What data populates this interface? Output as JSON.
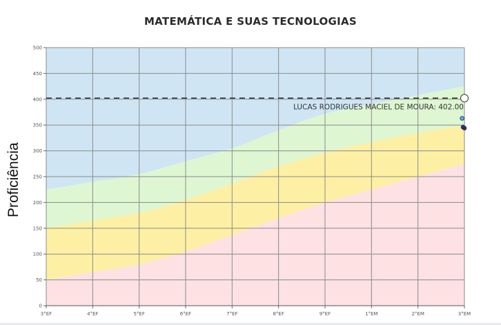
{
  "chart_data": {
    "type": "area",
    "title": "MATEMÁTICA E SUAS TECNOLOGIAS",
    "ylabel": "Proficiência",
    "xlabel": "",
    "categories": [
      "3°EF",
      "4°EF",
      "5°EF",
      "6°EF",
      "7°EF",
      "8°EF",
      "9°EF",
      "1°EM",
      "2°EM",
      "3°EM"
    ],
    "ylim": [
      0,
      500
    ],
    "yticks": [
      0,
      50,
      100,
      150,
      200,
      250,
      300,
      350,
      400,
      450,
      500
    ],
    "grid": true,
    "bands": [
      {
        "color": "#fde1e3",
        "lower": [
          0,
          0,
          0,
          0,
          0,
          0,
          0,
          0,
          0,
          0
        ],
        "upper": [
          50,
          65,
          80,
          105,
          137,
          170,
          200,
          225,
          250,
          275
        ]
      },
      {
        "color": "#fdf0a4",
        "lower": [
          50,
          65,
          80,
          105,
          137,
          170,
          200,
          225,
          250,
          275
        ],
        "upper": [
          150,
          165,
          180,
          205,
          237,
          270,
          297,
          317,
          335,
          350
        ]
      },
      {
        "color": "#def6d2",
        "lower": [
          150,
          165,
          180,
          205,
          237,
          270,
          297,
          317,
          335,
          350
        ],
        "upper": [
          225,
          240,
          255,
          280,
          305,
          340,
          372,
          390,
          408,
          425
        ]
      },
      {
        "color": "#cfe5f4",
        "lower": [
          225,
          240,
          255,
          280,
          305,
          340,
          372,
          390,
          408,
          425
        ],
        "upper": [
          500,
          500,
          500,
          500,
          500,
          500,
          500,
          500,
          500,
          500
        ]
      }
    ],
    "reference_line": {
      "value": 402,
      "label": "LUCAS RODRIGUES MACIEL DE MOURA: 402.00"
    },
    "points": [
      {
        "x": 8.95,
        "y": 363,
        "color": "#5ab4e8"
      },
      {
        "x": 8.97,
        "y": 346,
        "color": "#3f3fbf"
      },
      {
        "x": 9.0,
        "y": 344,
        "color": "#2b2b7f"
      }
    ]
  }
}
